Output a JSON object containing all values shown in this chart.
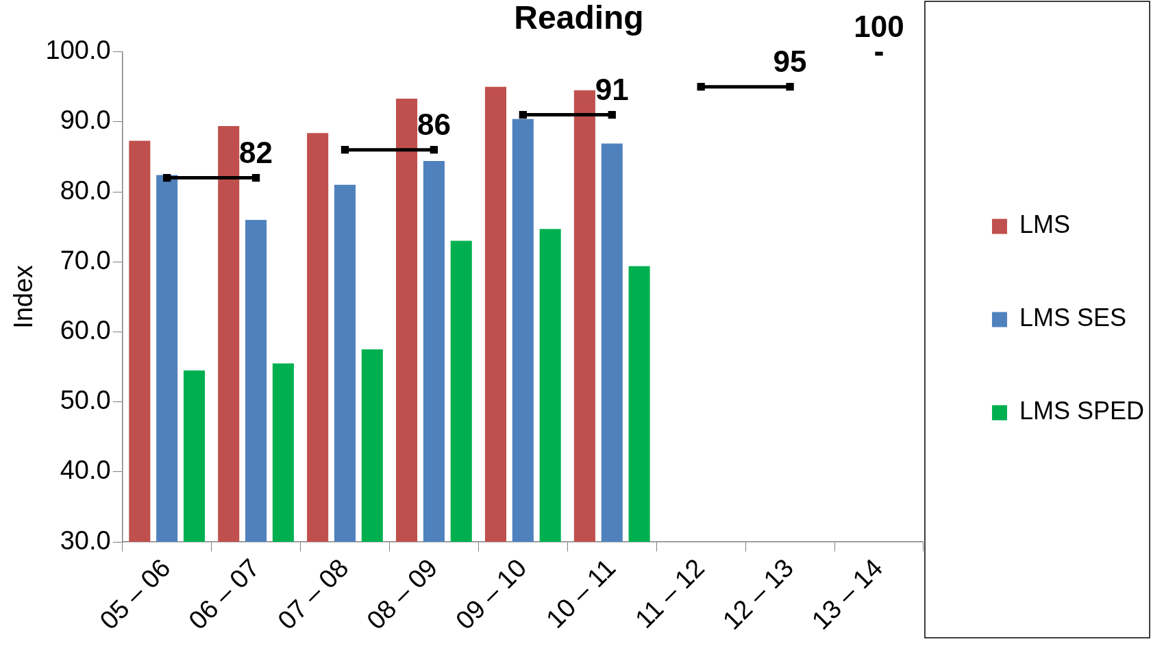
{
  "chart_data": {
    "type": "bar",
    "title": "Reading",
    "ylabel": "Index",
    "categories": [
      "05 – 06",
      "06 – 07",
      "07 – 08",
      "08 – 09",
      "09 – 10",
      "10 – 11",
      "11 – 12",
      "12 – 13",
      "13 – 14"
    ],
    "ylim": [
      30,
      100
    ],
    "yticks": [
      {
        "value": 30,
        "label": "30.0"
      },
      {
        "value": 40,
        "label": "40.0"
      },
      {
        "value": 50,
        "label": "50.0"
      },
      {
        "value": 60,
        "label": "60.0"
      },
      {
        "value": 70,
        "label": "70.0"
      },
      {
        "value": 80,
        "label": "80.0"
      },
      {
        "value": 90,
        "label": "90.0"
      },
      {
        "value": 100,
        "label": "100.0"
      }
    ],
    "series": [
      {
        "name": "LMS",
        "color": "#c0504d",
        "values": [
          87.3,
          89.4,
          88.4,
          93.3,
          95.0,
          94.5,
          null,
          null,
          null
        ]
      },
      {
        "name": "LMS SES",
        "color": "#4f81bd",
        "values": [
          82.4,
          76.0,
          81.0,
          84.4,
          90.4,
          86.9,
          null,
          null,
          null
        ]
      },
      {
        "name": "LMS SPED",
        "color": "#00b050",
        "values": [
          54.5,
          55.5,
          57.5,
          73.0,
          74.7,
          69.4,
          null,
          null,
          null
        ]
      },
      {
        "type": "line",
        "color": "#000000",
        "marker": "square",
        "values": [
          82,
          82,
          null,
          null,
          null,
          null,
          null,
          null,
          null
        ],
        "value_labels": [
          null,
          "82",
          null,
          null,
          null,
          null,
          null,
          null,
          null
        ]
      },
      {
        "type": "line",
        "color": "#000000",
        "marker": "square",
        "values": [
          null,
          null,
          86,
          86,
          null,
          null,
          null,
          null,
          null
        ],
        "value_labels": [
          null,
          null,
          null,
          "86",
          null,
          null,
          null,
          null,
          null
        ]
      },
      {
        "type": "line",
        "color": "#000000",
        "marker": "square",
        "values": [
          null,
          null,
          null,
          null,
          91,
          91,
          null,
          null,
          null
        ],
        "value_labels": [
          null,
          null,
          null,
          null,
          null,
          "91",
          null,
          null,
          null
        ]
      },
      {
        "type": "line",
        "color": "#000000",
        "marker": "square",
        "values": [
          null,
          null,
          null,
          null,
          null,
          null,
          95,
          95,
          null
        ],
        "value_labels": [
          null,
          null,
          null,
          null,
          null,
          null,
          null,
          "95",
          null
        ]
      },
      {
        "type": "line",
        "color": "#000000",
        "marker": "square",
        "values": [
          null,
          null,
          null,
          null,
          null,
          null,
          null,
          null,
          100
        ],
        "value_labels": [
          null,
          null,
          null,
          null,
          null,
          null,
          null,
          null,
          "100"
        ]
      }
    ],
    "grid": false,
    "legend": "right"
  }
}
